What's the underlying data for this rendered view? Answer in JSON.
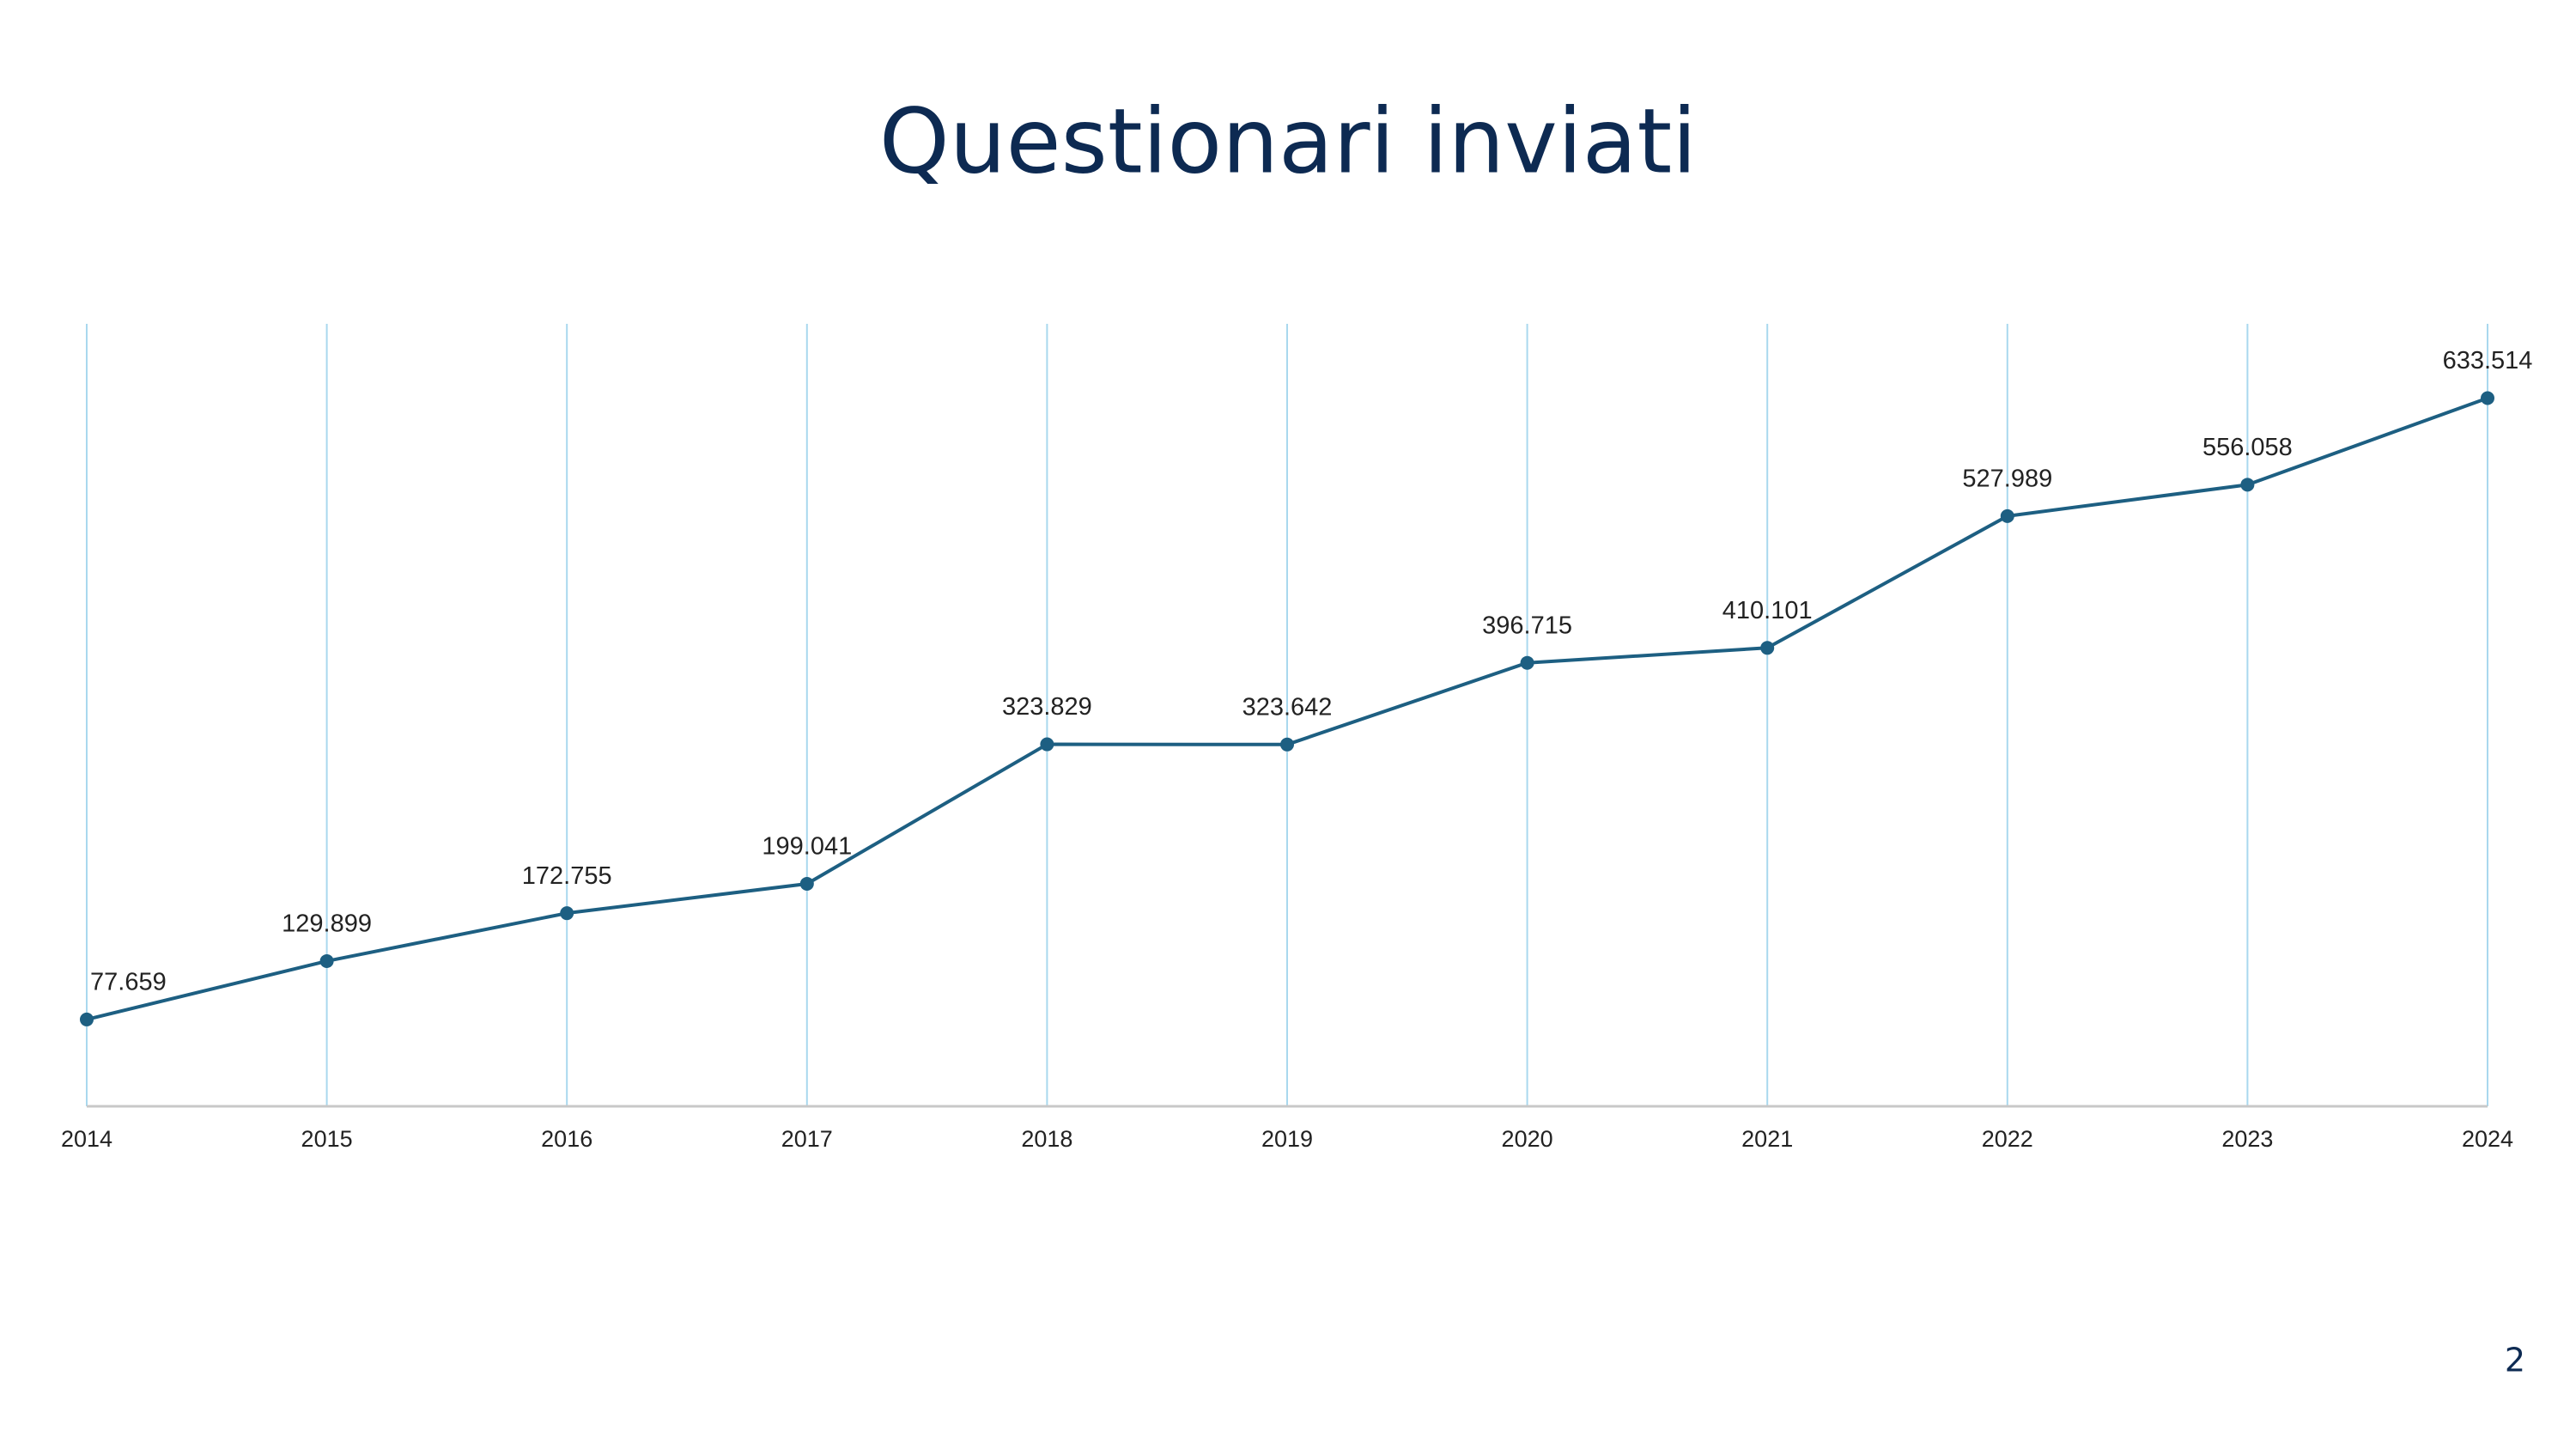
{
  "chart_data": {
    "type": "line",
    "title": "Questionari inviati",
    "categories": [
      "2014",
      "2015",
      "2016",
      "2017",
      "2018",
      "2019",
      "2020",
      "2021",
      "2022",
      "2023",
      "2024"
    ],
    "values": [
      77659,
      129899,
      172755,
      199041,
      323829,
      323642,
      396715,
      410101,
      527989,
      556058,
      633514
    ],
    "value_labels": [
      "77.659",
      "129.899",
      "172.755",
      "199.041",
      "323.829",
      "323.642",
      "396.715",
      "410.101",
      "527.989",
      "556.058",
      "633.514"
    ],
    "color": "#1d5f82",
    "grid_color": "#a9d8ee",
    "ylim": [
      0,
      700000
    ],
    "grid": true
  },
  "page_number": "2"
}
